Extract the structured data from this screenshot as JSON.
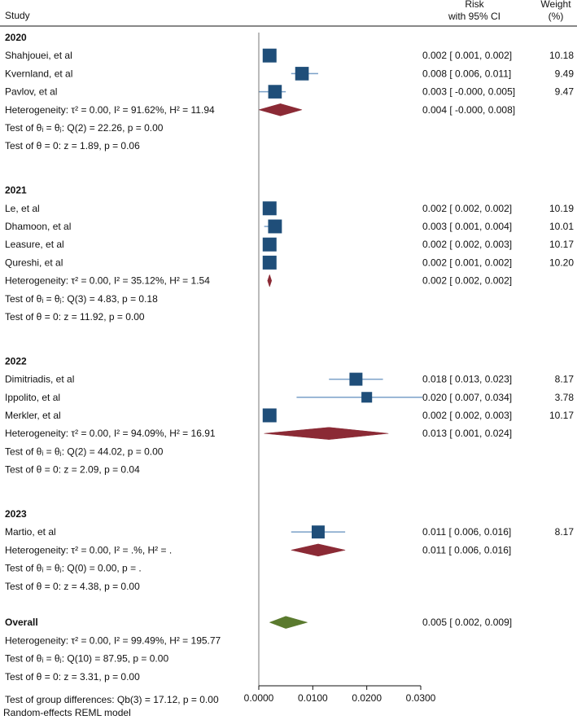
{
  "chart_data": {
    "type": "forest",
    "headers": {
      "study": "Study",
      "risk": "Risk",
      "risk_sub": "with 95% CI",
      "weight": "Weight",
      "weight_sub": "(%)"
    },
    "xaxis": {
      "min": 0,
      "max": 0.03,
      "ticks": [
        0,
        0.01,
        0.02,
        0.03
      ],
      "tick_labels": [
        "0.0000",
        "0.0100",
        "0.0200",
        "0.0300"
      ]
    },
    "groups": [
      {
        "name": "2020",
        "studies": [
          {
            "label": "Shahjouei, et al",
            "est": 0.002,
            "lo": 0.001,
            "hi": 0.002,
            "ci_text": "0.002 [ 0.001, 0.002]",
            "weight": "10.18"
          },
          {
            "label": "Kvernland, et al",
            "est": 0.008,
            "lo": 0.006,
            "hi": 0.011,
            "ci_text": "0.008 [ 0.006, 0.011]",
            "weight": "9.49"
          },
          {
            "label": "Pavlov, et al",
            "est": 0.003,
            "lo": 0.0,
            "hi": 0.005,
            "ci_text": "0.003 [ -0.000, 0.005]",
            "weight": "9.47"
          }
        ],
        "summary": {
          "est": 0.004,
          "lo": 0.0,
          "hi": 0.008,
          "ci_text": "0.004 [ -0.000, 0.008]",
          "color": "#8b2a35"
        },
        "stats": [
          "Heterogeneity: τ² = 0.00, I² = 91.62%, H² = 11.94",
          "Test of θᵢ = θⱼ: Q(2) = 22.26, p = 0.00",
          "Test of θ = 0: z = 1.89, p = 0.06"
        ]
      },
      {
        "name": "2021",
        "studies": [
          {
            "label": "Le, et al",
            "est": 0.002,
            "lo": 0.002,
            "hi": 0.002,
            "ci_text": "0.002 [ 0.002, 0.002]",
            "weight": "10.19"
          },
          {
            "label": "Dhamoon, et al",
            "est": 0.003,
            "lo": 0.001,
            "hi": 0.004,
            "ci_text": "0.003 [ 0.001, 0.004]",
            "weight": "10.01"
          },
          {
            "label": "Leasure, et al",
            "est": 0.002,
            "lo": 0.002,
            "hi": 0.003,
            "ci_text": "0.002 [ 0.002, 0.003]",
            "weight": "10.17"
          },
          {
            "label": "Qureshi, et al",
            "est": 0.002,
            "lo": 0.001,
            "hi": 0.002,
            "ci_text": "0.002 [ 0.001, 0.002]",
            "weight": "10.20"
          }
        ],
        "summary": {
          "est": 0.002,
          "lo": 0.002,
          "hi": 0.002,
          "ci_text": "0.002 [ 0.002, 0.002]",
          "color": "#8b2a35"
        },
        "stats": [
          "Heterogeneity: τ² = 0.00, I² = 35.12%, H² = 1.54",
          "Test of θᵢ = θⱼ: Q(3) = 4.83, p = 0.18",
          "Test of θ = 0: z = 11.92, p = 0.00"
        ]
      },
      {
        "name": "2022",
        "studies": [
          {
            "label": "Dimitriadis, et al",
            "est": 0.018,
            "lo": 0.013,
            "hi": 0.023,
            "ci_text": "0.018 [ 0.013, 0.023]",
            "weight": "8.17"
          },
          {
            "label": "Ippolito, et al",
            "est": 0.02,
            "lo": 0.007,
            "hi": 0.034,
            "ci_text": "0.020 [ 0.007, 0.034]",
            "weight": "3.78"
          },
          {
            "label": "Merkler, et al",
            "est": 0.002,
            "lo": 0.002,
            "hi": 0.003,
            "ci_text": "0.002 [ 0.002, 0.003]",
            "weight": "10.17"
          }
        ],
        "summary": {
          "est": 0.013,
          "lo": 0.001,
          "hi": 0.024,
          "ci_text": "0.013 [ 0.001, 0.024]",
          "color": "#8b2a35"
        },
        "stats": [
          "Heterogeneity: τ² = 0.00, I² = 94.09%, H² = 16.91",
          "Test of θᵢ = θⱼ: Q(2) = 44.02, p = 0.00",
          "Test of θ = 0: z = 2.09, p = 0.04"
        ]
      },
      {
        "name": "2023",
        "studies": [
          {
            "label": "Martio, et al",
            "est": 0.011,
            "lo": 0.006,
            "hi": 0.016,
            "ci_text": "0.011 [ 0.006, 0.016]",
            "weight": "8.17"
          }
        ],
        "summary": {
          "est": 0.011,
          "lo": 0.006,
          "hi": 0.016,
          "ci_text": "0.011 [ 0.006, 0.016]",
          "color": "#8b2a35"
        },
        "stats": [
          "Heterogeneity: τ² = 0.00, I² = .%, H² = .",
          "Test of θᵢ = θⱼ: Q(0) = 0.00, p = .",
          "Test of θ = 0: z = 4.38, p = 0.00"
        ]
      }
    ],
    "overall": {
      "label": "Overall",
      "est": 0.005,
      "lo": 0.002,
      "hi": 0.009,
      "ci_text": "0.005 [ 0.002, 0.009]",
      "color": "#5a7a2e",
      "stats": [
        "Heterogeneity: τ² = 0.00, I² = 99.49%, H² = 195.77",
        "Test of θᵢ = θⱼ: Q(10) = 87.95, p = 0.00",
        "Test of θ = 0: z = 3.31, p = 0.00"
      ]
    },
    "group_test": "Test of group differences: Qb(3) = 17.12, p = 0.00",
    "footnote": "Random-effects REML model",
    "colors": {
      "marker": "#1f4e79",
      "ci_line": "#7aa0c8",
      "text": "#111111"
    }
  }
}
